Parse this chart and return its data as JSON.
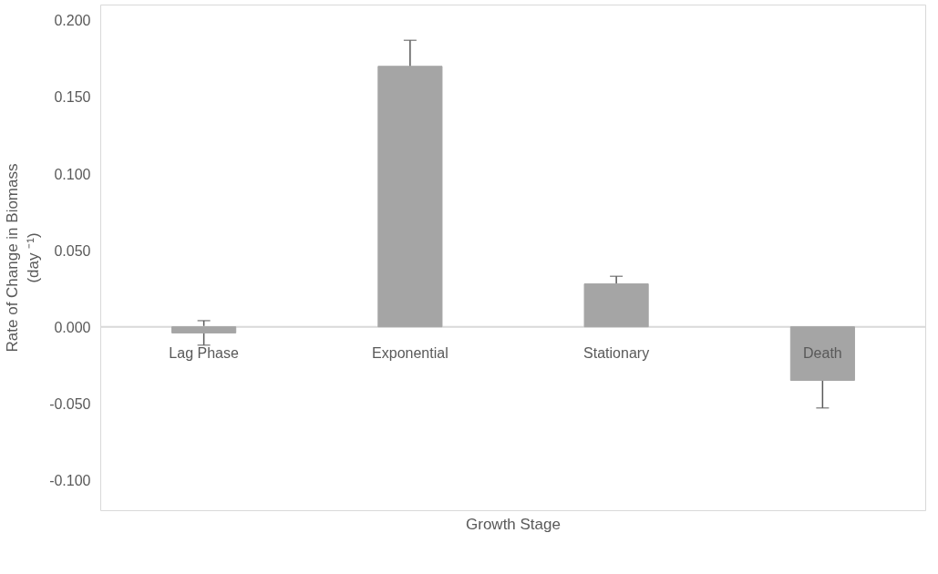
{
  "chart_data": {
    "type": "bar",
    "xlabel": "Growth Stage",
    "ylabel": "Rate of Change in Biomass\n(day ⁻¹)",
    "categories": [
      "Lag Phase",
      "Exponential",
      "Stationary",
      "Death"
    ],
    "values": [
      -0.004,
      0.17,
      0.028,
      -0.035
    ],
    "errors": [
      0.008,
      0.017,
      0.005,
      0.018
    ],
    "color": "#a5a5a5",
    "ylim": [
      -0.12,
      0.21
    ],
    "yticks": [
      {
        "value": -0.1,
        "label": "-0.100"
      },
      {
        "value": -0.05,
        "label": "-0.050"
      },
      {
        "value": 0,
        "label": "0.000"
      },
      {
        "value": 0.05,
        "label": "0.050"
      },
      {
        "value": 0.1,
        "label": "0.100"
      },
      {
        "value": 0.15,
        "label": "0.150"
      },
      {
        "value": 0.2,
        "label": "0.200"
      }
    ],
    "grid": false
  }
}
